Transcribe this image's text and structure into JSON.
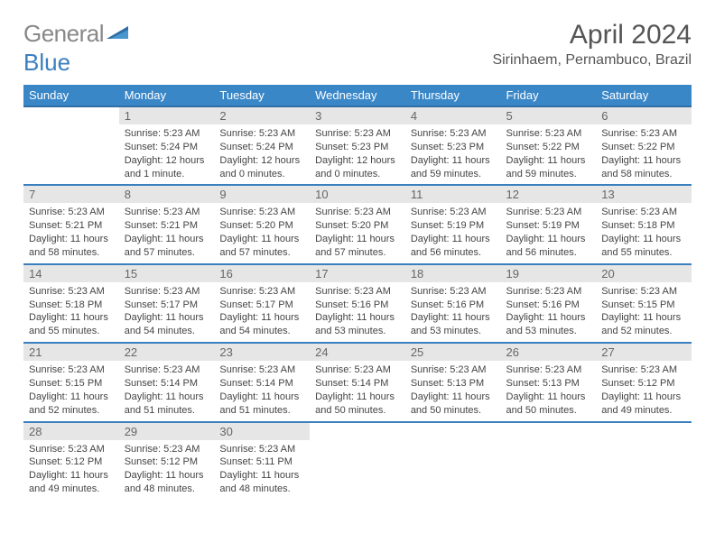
{
  "logo": {
    "text1": "General",
    "text2": "Blue"
  },
  "title": "April 2024",
  "location": "Sirinhaem, Pernambuco, Brazil",
  "calendar": {
    "headers": [
      "Sunday",
      "Monday",
      "Tuesday",
      "Wednesday",
      "Thursday",
      "Friday",
      "Saturday"
    ],
    "colors": {
      "header_bg": "#3a87c8",
      "header_text": "#ffffff",
      "row_border": "#3a7fbf",
      "daynum_bg": "#e6e6e6",
      "daynum_text": "#666666",
      "body_text": "#444444"
    },
    "font": {
      "header_size": 13,
      "daynum_size": 13,
      "body_size": 11
    },
    "leading_blanks": 1,
    "days": [
      {
        "n": "1",
        "sr": "5:23 AM",
        "ss": "5:24 PM",
        "dl": "12 hours and 1 minute."
      },
      {
        "n": "2",
        "sr": "5:23 AM",
        "ss": "5:24 PM",
        "dl": "12 hours and 0 minutes."
      },
      {
        "n": "3",
        "sr": "5:23 AM",
        "ss": "5:23 PM",
        "dl": "12 hours and 0 minutes."
      },
      {
        "n": "4",
        "sr": "5:23 AM",
        "ss": "5:23 PM",
        "dl": "11 hours and 59 minutes."
      },
      {
        "n": "5",
        "sr": "5:23 AM",
        "ss": "5:22 PM",
        "dl": "11 hours and 59 minutes."
      },
      {
        "n": "6",
        "sr": "5:23 AM",
        "ss": "5:22 PM",
        "dl": "11 hours and 58 minutes."
      },
      {
        "n": "7",
        "sr": "5:23 AM",
        "ss": "5:21 PM",
        "dl": "11 hours and 58 minutes."
      },
      {
        "n": "8",
        "sr": "5:23 AM",
        "ss": "5:21 PM",
        "dl": "11 hours and 57 minutes."
      },
      {
        "n": "9",
        "sr": "5:23 AM",
        "ss": "5:20 PM",
        "dl": "11 hours and 57 minutes."
      },
      {
        "n": "10",
        "sr": "5:23 AM",
        "ss": "5:20 PM",
        "dl": "11 hours and 57 minutes."
      },
      {
        "n": "11",
        "sr": "5:23 AM",
        "ss": "5:19 PM",
        "dl": "11 hours and 56 minutes."
      },
      {
        "n": "12",
        "sr": "5:23 AM",
        "ss": "5:19 PM",
        "dl": "11 hours and 56 minutes."
      },
      {
        "n": "13",
        "sr": "5:23 AM",
        "ss": "5:18 PM",
        "dl": "11 hours and 55 minutes."
      },
      {
        "n": "14",
        "sr": "5:23 AM",
        "ss": "5:18 PM",
        "dl": "11 hours and 55 minutes."
      },
      {
        "n": "15",
        "sr": "5:23 AM",
        "ss": "5:17 PM",
        "dl": "11 hours and 54 minutes."
      },
      {
        "n": "16",
        "sr": "5:23 AM",
        "ss": "5:17 PM",
        "dl": "11 hours and 54 minutes."
      },
      {
        "n": "17",
        "sr": "5:23 AM",
        "ss": "5:16 PM",
        "dl": "11 hours and 53 minutes."
      },
      {
        "n": "18",
        "sr": "5:23 AM",
        "ss": "5:16 PM",
        "dl": "11 hours and 53 minutes."
      },
      {
        "n": "19",
        "sr": "5:23 AM",
        "ss": "5:16 PM",
        "dl": "11 hours and 53 minutes."
      },
      {
        "n": "20",
        "sr": "5:23 AM",
        "ss": "5:15 PM",
        "dl": "11 hours and 52 minutes."
      },
      {
        "n": "21",
        "sr": "5:23 AM",
        "ss": "5:15 PM",
        "dl": "11 hours and 52 minutes."
      },
      {
        "n": "22",
        "sr": "5:23 AM",
        "ss": "5:14 PM",
        "dl": "11 hours and 51 minutes."
      },
      {
        "n": "23",
        "sr": "5:23 AM",
        "ss": "5:14 PM",
        "dl": "11 hours and 51 minutes."
      },
      {
        "n": "24",
        "sr": "5:23 AM",
        "ss": "5:14 PM",
        "dl": "11 hours and 50 minutes."
      },
      {
        "n": "25",
        "sr": "5:23 AM",
        "ss": "5:13 PM",
        "dl": "11 hours and 50 minutes."
      },
      {
        "n": "26",
        "sr": "5:23 AM",
        "ss": "5:13 PM",
        "dl": "11 hours and 50 minutes."
      },
      {
        "n": "27",
        "sr": "5:23 AM",
        "ss": "5:12 PM",
        "dl": "11 hours and 49 minutes."
      },
      {
        "n": "28",
        "sr": "5:23 AM",
        "ss": "5:12 PM",
        "dl": "11 hours and 49 minutes."
      },
      {
        "n": "29",
        "sr": "5:23 AM",
        "ss": "5:12 PM",
        "dl": "11 hours and 48 minutes."
      },
      {
        "n": "30",
        "sr": "5:23 AM",
        "ss": "5:11 PM",
        "dl": "11 hours and 48 minutes."
      }
    ]
  },
  "labels": {
    "sunrise": "Sunrise: ",
    "sunset": "Sunset: ",
    "daylight": "Daylight: "
  }
}
